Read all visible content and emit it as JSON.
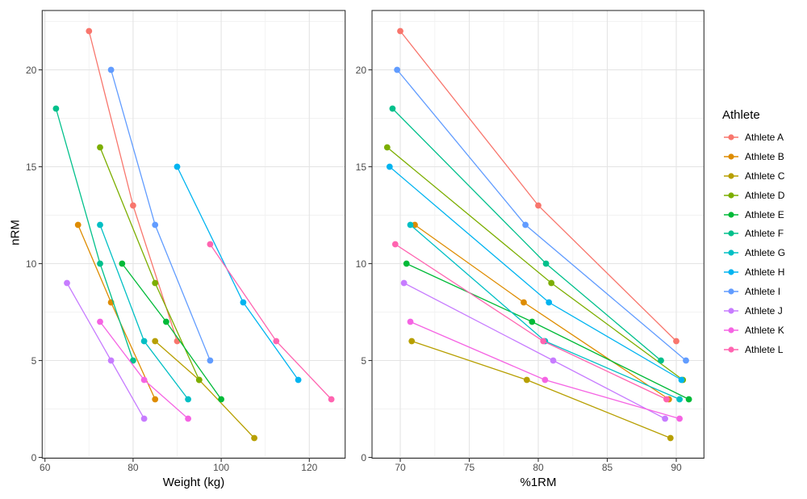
{
  "figure": {
    "background": "#FFFFFF"
  },
  "legend": {
    "title": "Athlete",
    "entries": [
      {
        "label": "Athlete A",
        "color": "#F8766D"
      },
      {
        "label": "Athlete B",
        "color": "#DE8C00"
      },
      {
        "label": "Athlete C",
        "color": "#B79F00"
      },
      {
        "label": "Athlete D",
        "color": "#7CAE00"
      },
      {
        "label": "Athlete E",
        "color": "#00BA38"
      },
      {
        "label": "Athlete F",
        "color": "#00C08B"
      },
      {
        "label": "Athlete G",
        "color": "#00BFC4"
      },
      {
        "label": "Athlete H",
        "color": "#00B4F0"
      },
      {
        "label": "Athlete I",
        "color": "#619CFF"
      },
      {
        "label": "Athlete J",
        "color": "#C77CFF"
      },
      {
        "label": "Athlete K",
        "color": "#F564E3"
      },
      {
        "label": "Athlete L",
        "color": "#FF64B0"
      }
    ]
  },
  "style": {
    "panel_border": "#333333",
    "grid_major": "#E4E4E4",
    "grid_minor": "#F2F2F2",
    "tick_color": "#333333",
    "tick_label_color": "#4D4D4D"
  },
  "chart_data": [
    {
      "type": "line",
      "title": "",
      "xlabel": "Weight (kg)",
      "ylabel": "nRM",
      "xlim": [
        59.4,
        128.1
      ],
      "ylim": [
        -0.05,
        23.05
      ],
      "xticks": [
        60,
        80,
        100,
        120
      ],
      "xticks_minor": [
        70,
        90,
        110
      ],
      "yticks": [
        0,
        5,
        10,
        15,
        20
      ],
      "yticks_minor": [
        2.5,
        7.5,
        12.5,
        17.5,
        22.5
      ],
      "grid": true,
      "legend_position": "right",
      "series": [
        {
          "name": "Athlete A",
          "color": "#F8766D",
          "points": [
            [
              70,
              22
            ],
            [
              80,
              13
            ],
            [
              90,
              6
            ]
          ]
        },
        {
          "name": "Athlete B",
          "color": "#DE8C00",
          "points": [
            [
              67.5,
              12
            ],
            [
              75,
              8
            ],
            [
              85,
              3
            ]
          ]
        },
        {
          "name": "Athlete C",
          "color": "#B79F00",
          "points": [
            [
              85,
              6
            ],
            [
              95,
              4
            ],
            [
              107.5,
              1
            ]
          ]
        },
        {
          "name": "Athlete D",
          "color": "#7CAE00",
          "points": [
            [
              72.5,
              16
            ],
            [
              85,
              9
            ],
            [
              95,
              4
            ]
          ]
        },
        {
          "name": "Athlete E",
          "color": "#00BA38",
          "points": [
            [
              77.5,
              10
            ],
            [
              87.5,
              7
            ],
            [
              100,
              3
            ]
          ]
        },
        {
          "name": "Athlete F",
          "color": "#00C08B",
          "points": [
            [
              62.5,
              18
            ],
            [
              72.5,
              10
            ],
            [
              80,
              5
            ]
          ]
        },
        {
          "name": "Athlete G",
          "color": "#00BFC4",
          "points": [
            [
              72.5,
              12
            ],
            [
              82.5,
              6
            ],
            [
              92.5,
              3
            ]
          ]
        },
        {
          "name": "Athlete H",
          "color": "#00B4F0",
          "points": [
            [
              90,
              15
            ],
            [
              105,
              8
            ],
            [
              117.5,
              4
            ]
          ]
        },
        {
          "name": "Athlete I",
          "color": "#619CFF",
          "points": [
            [
              75,
              20
            ],
            [
              85,
              12
            ],
            [
              97.5,
              5
            ]
          ]
        },
        {
          "name": "Athlete J",
          "color": "#C77CFF",
          "points": [
            [
              65,
              9
            ],
            [
              75,
              5
            ],
            [
              82.5,
              2
            ]
          ]
        },
        {
          "name": "Athlete K",
          "color": "#F564E3",
          "points": [
            [
              72.5,
              7
            ],
            [
              82.5,
              4
            ],
            [
              92.5,
              2
            ]
          ]
        },
        {
          "name": "Athlete L",
          "color": "#FF64B0",
          "points": [
            [
              97.5,
              11
            ],
            [
              112.5,
              6
            ],
            [
              125,
              3
            ]
          ]
        }
      ]
    },
    {
      "type": "line",
      "title": "",
      "xlabel": "%1RM",
      "ylabel": "",
      "xlim": [
        68.0,
        92.0
      ],
      "ylim": [
        -0.05,
        23.05
      ],
      "xticks": [
        70,
        75,
        80,
        85,
        90
      ],
      "xticks_minor": [
        72.5,
        77.5,
        82.5,
        87.5
      ],
      "yticks": [
        0,
        5,
        10,
        15,
        20
      ],
      "yticks_minor": [
        2.5,
        7.5,
        12.5,
        17.5,
        22.5
      ],
      "grid": true,
      "legend_position": "right",
      "series": [
        {
          "name": "Athlete A",
          "color": "#F8766D",
          "points": [
            [
              70,
              22
            ],
            [
              80,
              13
            ],
            [
              90,
              6
            ]
          ]
        },
        {
          "name": "Athlete B",
          "color": "#DE8C00",
          "points": [
            [
              71.05,
              12
            ],
            [
              78.95,
              8
            ],
            [
              89.47,
              3
            ]
          ]
        },
        {
          "name": "Athlete C",
          "color": "#B79F00",
          "points": [
            [
              70.83,
              6
            ],
            [
              79.17,
              4
            ],
            [
              89.58,
              1
            ]
          ]
        },
        {
          "name": "Athlete D",
          "color": "#7CAE00",
          "points": [
            [
              69.05,
              16
            ],
            [
              80.95,
              9
            ],
            [
              90.48,
              4
            ]
          ]
        },
        {
          "name": "Athlete E",
          "color": "#00BA38",
          "points": [
            [
              70.45,
              10
            ],
            [
              79.55,
              7
            ],
            [
              90.91,
              3
            ]
          ]
        },
        {
          "name": "Athlete F",
          "color": "#00C08B",
          "points": [
            [
              69.44,
              18
            ],
            [
              80.56,
              10
            ],
            [
              88.89,
              5
            ]
          ]
        },
        {
          "name": "Athlete G",
          "color": "#00BFC4",
          "points": [
            [
              70.73,
              12
            ],
            [
              80.49,
              6
            ],
            [
              90.24,
              3
            ]
          ]
        },
        {
          "name": "Athlete H",
          "color": "#00B4F0",
          "points": [
            [
              69.23,
              15
            ],
            [
              80.77,
              8
            ],
            [
              90.38,
              4
            ]
          ]
        },
        {
          "name": "Athlete I",
          "color": "#619CFF",
          "points": [
            [
              69.77,
              20
            ],
            [
              79.07,
              12
            ],
            [
              90.7,
              5
            ]
          ]
        },
        {
          "name": "Athlete J",
          "color": "#C77CFF",
          "points": [
            [
              70.27,
              9
            ],
            [
              81.08,
              5
            ],
            [
              89.19,
              2
            ]
          ]
        },
        {
          "name": "Athlete K",
          "color": "#F564E3",
          "points": [
            [
              70.73,
              7
            ],
            [
              80.49,
              4
            ],
            [
              90.24,
              2
            ]
          ]
        },
        {
          "name": "Athlete L",
          "color": "#FF64B0",
          "points": [
            [
              69.64,
              11
            ],
            [
              80.36,
              6
            ],
            [
              89.29,
              3
            ]
          ]
        }
      ]
    }
  ]
}
